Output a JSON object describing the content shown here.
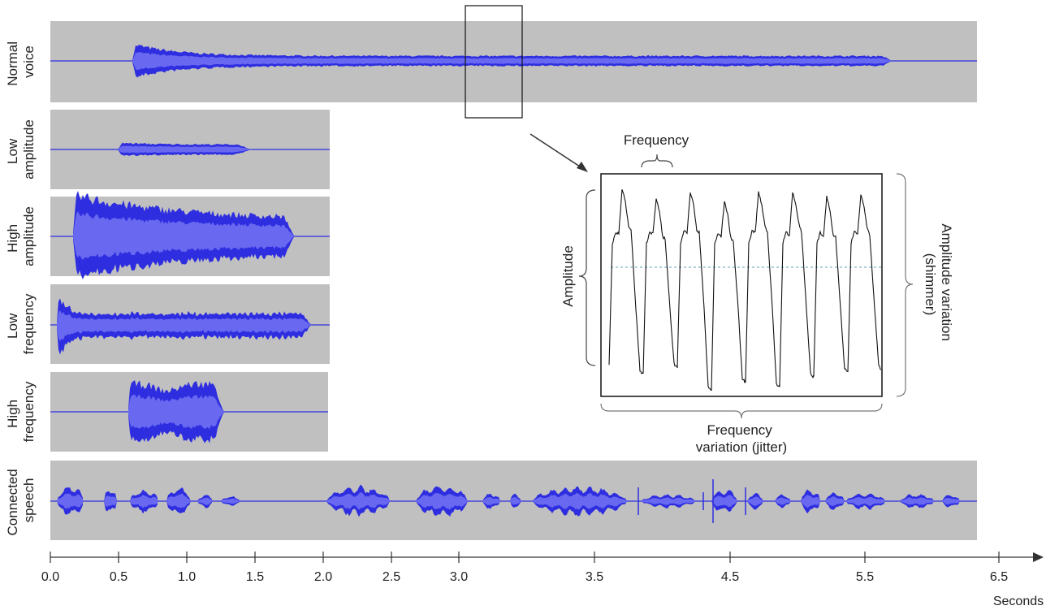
{
  "panels": [
    {
      "id": "normal",
      "label_lines": [
        "Normal",
        "voice"
      ]
    },
    {
      "id": "low-amp",
      "label_lines": [
        "Low",
        "amplitude"
      ]
    },
    {
      "id": "high-amp",
      "label_lines": [
        "High",
        "amplitude"
      ]
    },
    {
      "id": "low-freq",
      "label_lines": [
        "Low",
        "frequency"
      ]
    },
    {
      "id": "high-freq",
      "label_lines": [
        "High",
        "frequency"
      ]
    },
    {
      "id": "speech",
      "label_lines": [
        "Connected",
        "speech"
      ]
    }
  ],
  "axis": {
    "ticks": [
      "0.0",
      "0.5",
      "1.0",
      "1.5",
      "2.0",
      "2.5",
      "3.0",
      "3.5",
      "4.5",
      "5.5",
      "6.5"
    ],
    "unit_label": "Seconds"
  },
  "zoom": {
    "frequency_label": "Frequency",
    "amplitude_label": "Amplitude",
    "amplitude_variation_lines": [
      "Amplitude variation",
      "(shimmer)"
    ],
    "frequency_variation_lines": [
      "Frequency",
      "variation (jitter)"
    ]
  },
  "colors": {
    "panel_bg": "#c0c0c0",
    "wave_dark": "#2e2ee0",
    "wave_light": "#6868f0",
    "zoom_wave": "#111111",
    "baseline_dotted": "#7fb3c8"
  }
}
